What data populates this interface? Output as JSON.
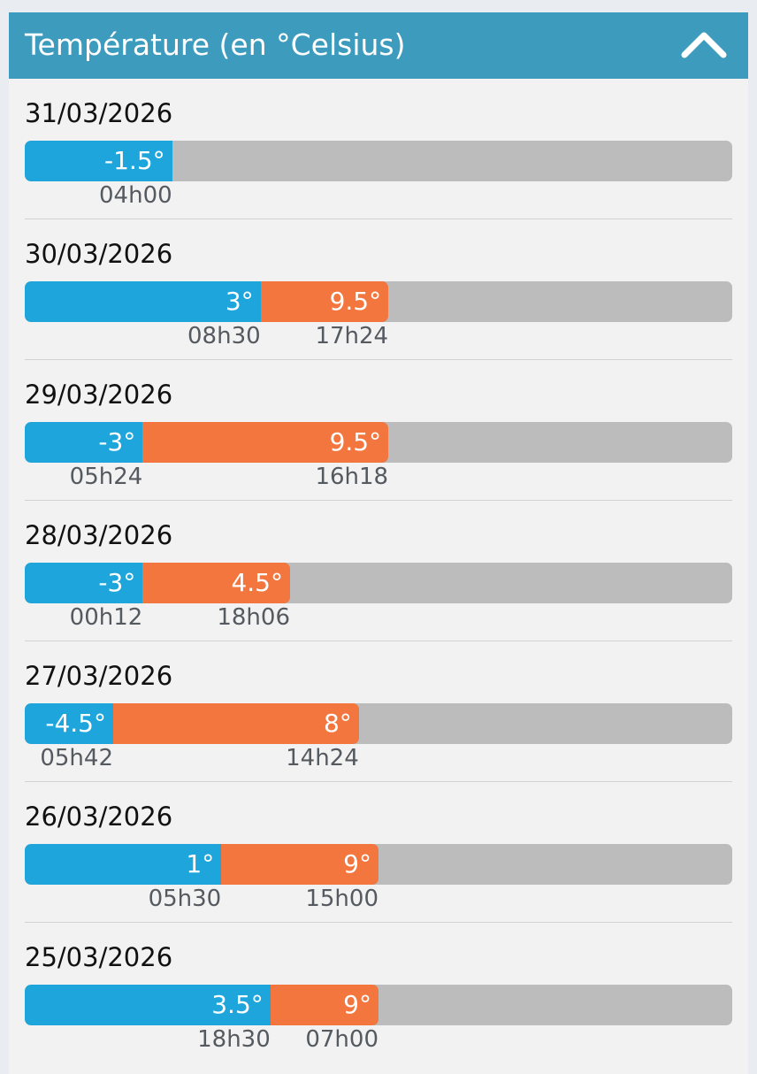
{
  "header": {
    "title": "Température (en °Celsius)",
    "collapse_icon": "chevron-up-icon"
  },
  "scale": {
    "min_value": -9,
    "max_value": 27
  },
  "colors": {
    "header": "#3d9bbd",
    "min_bar": "#1ea6dc",
    "max_bar": "#f2763d",
    "track": "#bcbcbc"
  },
  "days": [
    {
      "date": "31/03/2026",
      "min": {
        "value": -1.5,
        "label": "-1.5°",
        "time": "04h00"
      },
      "max": null
    },
    {
      "date": "30/03/2026",
      "min": {
        "value": 3,
        "label": "3°",
        "time": "08h30"
      },
      "max": {
        "value": 9.5,
        "label": "9.5°",
        "time": "17h24"
      }
    },
    {
      "date": "29/03/2026",
      "min": {
        "value": -3,
        "label": "-3°",
        "time": "05h24"
      },
      "max": {
        "value": 9.5,
        "label": "9.5°",
        "time": "16h18"
      }
    },
    {
      "date": "28/03/2026",
      "min": {
        "value": -3,
        "label": "-3°",
        "time": "00h12"
      },
      "max": {
        "value": 4.5,
        "label": "4.5°",
        "time": "18h06"
      }
    },
    {
      "date": "27/03/2026",
      "min": {
        "value": -4.5,
        "label": "-4.5°",
        "time": "05h42"
      },
      "max": {
        "value": 8,
        "label": "8°",
        "time": "14h24"
      }
    },
    {
      "date": "26/03/2026",
      "min": {
        "value": 1,
        "label": "1°",
        "time": "05h30"
      },
      "max": {
        "value": 9,
        "label": "9°",
        "time": "15h00"
      }
    },
    {
      "date": "25/03/2026",
      "min": {
        "value": 3.5,
        "label": "3.5°",
        "time": "18h30"
      },
      "max": {
        "value": 9,
        "label": "9°",
        "time": "07h00"
      }
    }
  ]
}
